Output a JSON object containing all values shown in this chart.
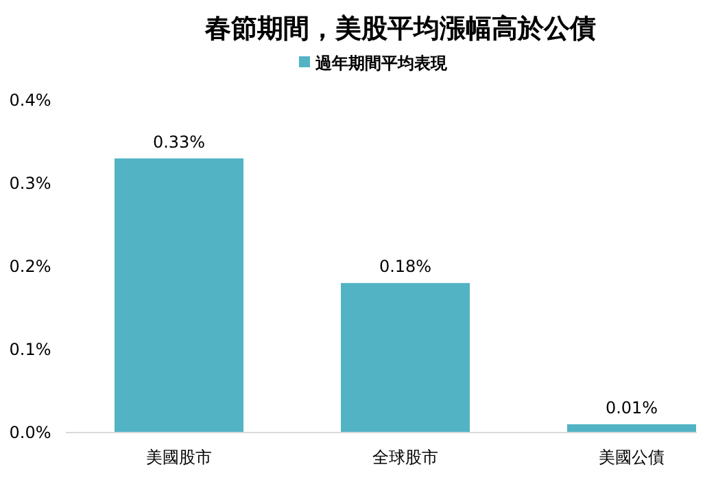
{
  "chart_data": {
    "type": "bar",
    "title": "春節期間，美股平均漲幅高於公債",
    "categories": [
      "美國股市",
      "全球股市",
      "美國公債"
    ],
    "series": [
      {
        "name": "過年期間平均表現",
        "color": "#52b3c5",
        "values": [
          0.33,
          0.18,
          0.01
        ],
        "value_labels": [
          "0.33%",
          "0.18%",
          "0.01%"
        ]
      }
    ],
    "ylim": [
      0,
      0.4
    ],
    "yticks": [
      {
        "value": 0,
        "label": "0.0%"
      },
      {
        "value": 0.1,
        "label": "0.1%"
      },
      {
        "value": 0.2,
        "label": "0.2%"
      },
      {
        "value": 0.3,
        "label": "0.3%"
      },
      {
        "value": 0.4,
        "label": "0.4%"
      }
    ],
    "legend": "top",
    "grid": false
  }
}
